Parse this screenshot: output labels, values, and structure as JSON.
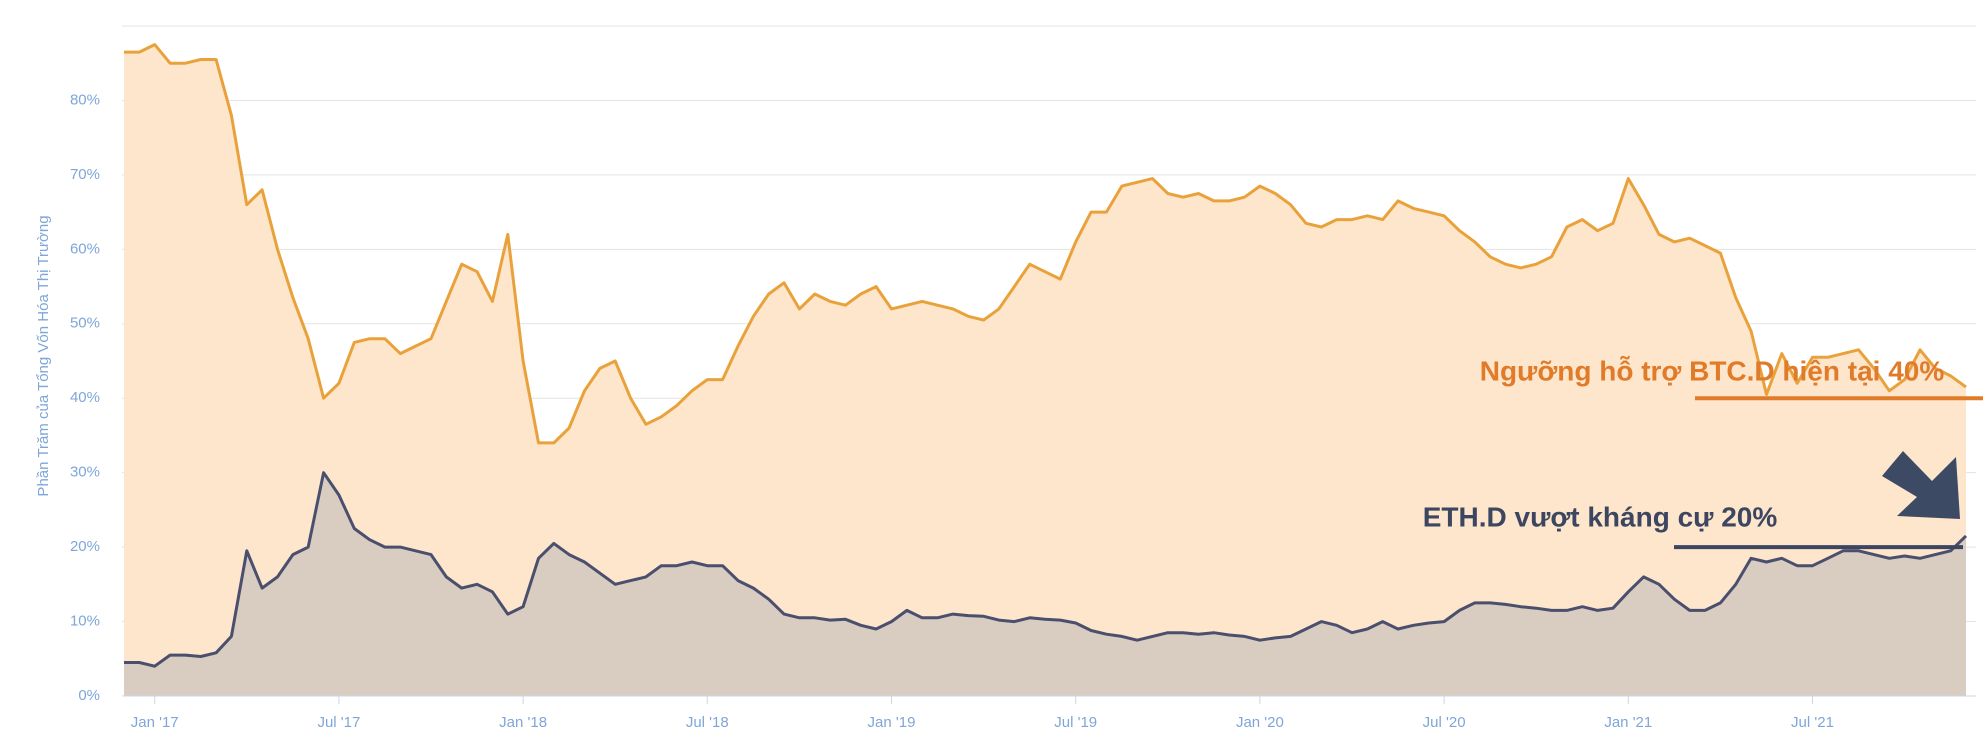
{
  "chart_data": {
    "type": "area",
    "ylabel": "Phần Trăm của Tổng Vốn Hóa Thị Trường",
    "xlim": [
      0,
      120
    ],
    "xticks": [
      {
        "value": 2,
        "label": "Jan '17"
      },
      {
        "value": 14,
        "label": "Jul '17"
      },
      {
        "value": 26,
        "label": "Jan '18"
      },
      {
        "value": 38,
        "label": "Jul '18"
      },
      {
        "value": 50,
        "label": "Jan '19"
      },
      {
        "value": 62,
        "label": "Jul '19"
      },
      {
        "value": 74,
        "label": "Jan '20"
      },
      {
        "value": 86,
        "label": "Jul '20"
      },
      {
        "value": 98,
        "label": "Jan '21"
      },
      {
        "value": 110,
        "label": "Jul '21"
      }
    ],
    "ylim": [
      0,
      90
    ],
    "yticks": [
      {
        "value": 0,
        "label": "0%"
      },
      {
        "value": 10,
        "label": "10%"
      },
      {
        "value": 20,
        "label": "20%"
      },
      {
        "value": 30,
        "label": "30%"
      },
      {
        "value": 40,
        "label": "40%"
      },
      {
        "value": 50,
        "label": "50%"
      },
      {
        "value": 60,
        "label": "60%"
      },
      {
        "value": 70,
        "label": "70%"
      },
      {
        "value": 80,
        "label": "80%"
      }
    ],
    "grid": true,
    "series": [
      {
        "color": "#e9a23b",
        "fill": "#fde6cb",
        "values": [
          86.5,
          86.5,
          87.5,
          85,
          85,
          85.5,
          85.5,
          78,
          66,
          68,
          60,
          53.5,
          48,
          40,
          42,
          47.5,
          48,
          48,
          46,
          47,
          48,
          53,
          58,
          57,
          53,
          62,
          45,
          34,
          34,
          36,
          41,
          44,
          45,
          40,
          36.5,
          37.5,
          39,
          41,
          42.5,
          42.5,
          47,
          51,
          54,
          55.5,
          52,
          54,
          53,
          52.5,
          54,
          55,
          52,
          52.5,
          53,
          52.5,
          52,
          51,
          50.5,
          52,
          55,
          58,
          57,
          56,
          61,
          65,
          65,
          68.5,
          69,
          69.5,
          67.5,
          67,
          67.5,
          66.5,
          66.5,
          67,
          68.5,
          67.5,
          66,
          63.5,
          63,
          64,
          64,
          64.5,
          64,
          66.5,
          65.5,
          65,
          64.5,
          62.5,
          61,
          59,
          58,
          57.5,
          58,
          59,
          63,
          64,
          62.5,
          63.5,
          69.5,
          66,
          62,
          61,
          61.5,
          60.5,
          59.5,
          53.5,
          49,
          40.5,
          46,
          42,
          45.5,
          45.5,
          46,
          46.5,
          44,
          41,
          42.5,
          46.5,
          44,
          43,
          41.5
        ]
      },
      {
        "color": "#4b4f6e",
        "fill": "#d9ccc1",
        "values": [
          4.5,
          4.5,
          4,
          5.5,
          5.5,
          5.3,
          5.8,
          8,
          19.5,
          14.5,
          16,
          19,
          20,
          30,
          27,
          22.5,
          21,
          20,
          20,
          19.5,
          19,
          16,
          14.5,
          15,
          14,
          11,
          12,
          18.5,
          20.5,
          19,
          18,
          16.5,
          15,
          15.5,
          16,
          17.5,
          17.5,
          18,
          17.5,
          17.5,
          15.5,
          14.5,
          13,
          11,
          10.5,
          10.5,
          10.2,
          10.3,
          9.5,
          9,
          10,
          11.5,
          10.5,
          10.5,
          11,
          10.8,
          10.7,
          10.2,
          10,
          10.5,
          10.3,
          10.2,
          9.8,
          8.8,
          8.3,
          8,
          7.5,
          8,
          8.5,
          8.5,
          8.3,
          8.5,
          8.2,
          8,
          7.5,
          7.8,
          8,
          9,
          10,
          9.5,
          8.5,
          9,
          10,
          9,
          9.5,
          9.8,
          10,
          11.5,
          12.5,
          12.5,
          12.3,
          12,
          11.8,
          11.5,
          11.5,
          12,
          11.5,
          11.8,
          14,
          16,
          15,
          13,
          11.5,
          11.5,
          12.5,
          15,
          18.5,
          18,
          18.5,
          17.5,
          17.5,
          18.5,
          19.5,
          19.5,
          19,
          18.5,
          18.8,
          18.5,
          19,
          19.5,
          21.5
        ]
      }
    ],
    "annotations": [
      {
        "text": "Ngưỡng hỗ trợ BTC.D hiện tại 40%",
        "level": 40,
        "color": "#e07b2a"
      },
      {
        "text": "ETH.D vượt kháng cự 20%",
        "level": 20,
        "color": "#3c4660"
      }
    ]
  }
}
